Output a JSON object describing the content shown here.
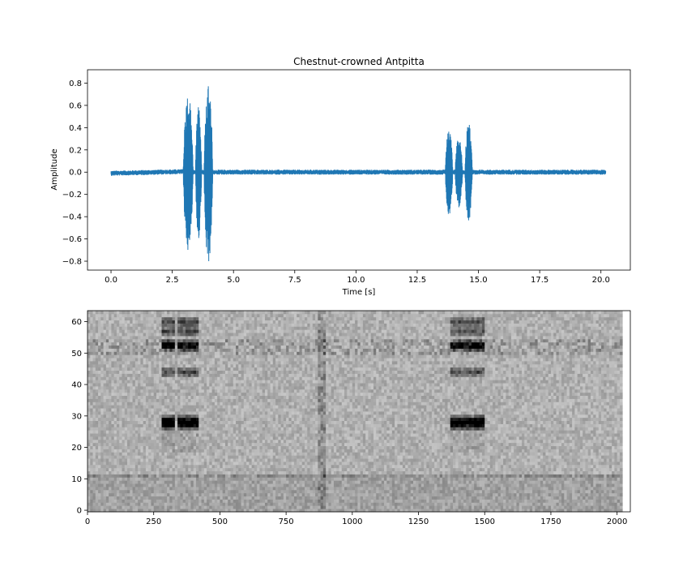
{
  "chart_data": [
    {
      "type": "line",
      "title": "Chestnut-crowned Antpitta",
      "xlabel": "Time [s]",
      "ylabel": "Amplitude",
      "xlim": [
        -0.96,
        21.2
      ],
      "ylim": [
        -0.88,
        0.92
      ],
      "x_ticks": [
        0.0,
        2.5,
        5.0,
        7.5,
        10.0,
        12.5,
        15.0,
        17.5,
        20.0
      ],
      "x_tick_labels": [
        "0.0",
        "2.5",
        "5.0",
        "7.5",
        "10.0",
        "12.5",
        "15.0",
        "17.5",
        "20.0"
      ],
      "y_ticks": [
        -0.8,
        -0.6,
        -0.4,
        -0.2,
        0.0,
        0.2,
        0.4,
        0.6,
        0.8
      ],
      "y_tick_labels": [
        "−0.8",
        "−0.6",
        "−0.4",
        "−0.2",
        "0.0",
        "0.2",
        "0.4",
        "0.6",
        "0.8"
      ],
      "color": "#1f77b4",
      "grid": false,
      "series": [
        {
          "duration": 20.2,
          "baseline_noise": 0.015,
          "bursts": [
            {
              "start": 2.95,
              "end": 3.35,
              "peak": 0.7,
              "trough": -0.7
            },
            {
              "start": 3.45,
              "end": 3.7,
              "peak": 0.6,
              "trough": -0.6
            },
            {
              "start": 3.8,
              "end": 4.15,
              "peak": 0.84,
              "trough": -0.8
            },
            {
              "start": 13.65,
              "end": 13.95,
              "peak": 0.39,
              "trough": -0.38
            },
            {
              "start": 14.05,
              "end": 14.35,
              "peak": 0.32,
              "trough": -0.3
            },
            {
              "start": 14.45,
              "end": 14.75,
              "peak": 0.44,
              "trough": -0.43
            }
          ]
        }
      ]
    },
    {
      "type": "heatmap",
      "colormap": "gray_r",
      "xlim": [
        0,
        2050
      ],
      "ylim": [
        -0.5,
        63.5
      ],
      "data_x_extent": [
        0,
        2020
      ],
      "x_ticks": [
        0,
        250,
        500,
        750,
        1000,
        1250,
        1500,
        1750,
        2000
      ],
      "x_tick_labels": [
        "0",
        "250",
        "500",
        "750",
        "1000",
        "1250",
        "1500",
        "1750",
        "2000"
      ],
      "y_ticks": [
        0,
        10,
        20,
        30,
        40,
        50,
        60
      ],
      "y_tick_labels": [
        "0",
        "10",
        "20",
        "30",
        "40",
        "50",
        "60"
      ],
      "rows": 64,
      "cols": 202,
      "harmonic_bins": [
        28,
        27,
        29,
        52,
        53,
        44,
        57,
        60
      ],
      "call_columns": [
        {
          "start": 280,
          "end": 330,
          "intensity": 0.9
        },
        {
          "start": 340,
          "end": 380,
          "intensity": 0.85
        },
        {
          "start": 380,
          "end": 420,
          "intensity": 0.95
        },
        {
          "start": 1370,
          "end": 1420,
          "intensity": 0.85
        },
        {
          "start": 1420,
          "end": 1460,
          "intensity": 0.8
        },
        {
          "start": 1460,
          "end": 1500,
          "intensity": 0.9
        }
      ],
      "broadband_columns": [
        880,
        890
      ]
    }
  ]
}
